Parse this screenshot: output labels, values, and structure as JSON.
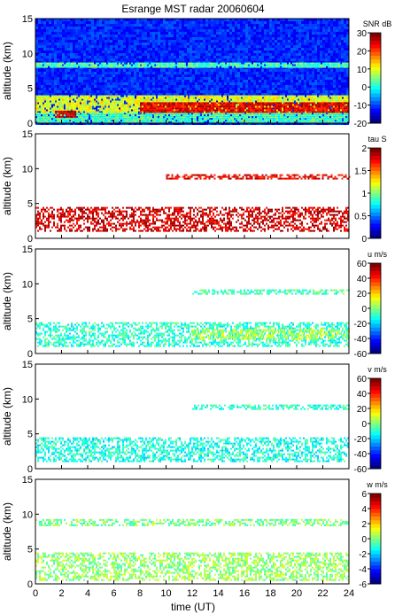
{
  "title": "Esrange MST radar 20060604",
  "chart_data": [
    {
      "type": "heatmap",
      "ylabel": "altitude (km)",
      "xlabel": "",
      "xlim": [
        0,
        24
      ],
      "ylim": [
        0,
        15
      ],
      "x_ticks": [
        "0",
        "2",
        "4",
        "6",
        "8",
        "10",
        "12",
        "14",
        "16",
        "18",
        "20",
        "22",
        "24"
      ],
      "y_ticks": [
        "0",
        "5",
        "10",
        "15"
      ],
      "colorbar": {
        "label": "SNR dB",
        "min": -20,
        "max": 30,
        "ticks": [
          "30",
          "20",
          "10",
          "0",
          "-10",
          "-20"
        ]
      },
      "background": "noise",
      "layers": [
        {
          "x": [
            0,
            24
          ],
          "y": [
            0,
            1.5
          ],
          "level": 0.45
        },
        {
          "x": [
            0,
            24
          ],
          "y": [
            1.5,
            4
          ],
          "level": 0.6
        },
        {
          "x": [
            8,
            24
          ],
          "y": [
            1.5,
            3
          ],
          "level": 0.9
        },
        {
          "x": [
            1.5,
            3
          ],
          "y": [
            0.8,
            1.8
          ],
          "level": 0.95
        },
        {
          "x": [
            0,
            24
          ],
          "y": [
            8,
            8.7
          ],
          "level": 0.45
        }
      ]
    },
    {
      "type": "heatmap",
      "ylabel": "altitude (km)",
      "xlabel": "",
      "xlim": [
        0,
        24
      ],
      "ylim": [
        0,
        15
      ],
      "x_ticks": [
        "0",
        "2",
        "4",
        "6",
        "8",
        "10",
        "12",
        "14",
        "16",
        "18",
        "20",
        "22",
        "24"
      ],
      "y_ticks": [
        "0",
        "5",
        "10",
        "15"
      ],
      "colorbar": {
        "label": "tau S",
        "min": 0,
        "max": 2,
        "ticks": [
          "2",
          "1.5",
          "1",
          "0.5",
          "0"
        ]
      },
      "background": "none",
      "layers": [
        {
          "x": [
            0,
            24
          ],
          "y": [
            1,
            4.5
          ],
          "level": 0.92
        },
        {
          "x": [
            10,
            24
          ],
          "y": [
            8.5,
            9.2
          ],
          "level": 0.9
        }
      ]
    },
    {
      "type": "heatmap",
      "ylabel": "altitude (km)",
      "xlabel": "",
      "xlim": [
        0,
        24
      ],
      "ylim": [
        0,
        15
      ],
      "x_ticks": [
        "0",
        "2",
        "4",
        "6",
        "8",
        "10",
        "12",
        "14",
        "16",
        "18",
        "20",
        "22",
        "24"
      ],
      "y_ticks": [
        "0",
        "5",
        "10",
        "15"
      ],
      "colorbar": {
        "label": "u m/s",
        "min": -60,
        "max": 60,
        "ticks": [
          "60",
          "40",
          "20",
          "0",
          "-20",
          "-40",
          "-60"
        ]
      },
      "background": "none",
      "layers": [
        {
          "x": [
            0,
            24
          ],
          "y": [
            1,
            4.5
          ],
          "level": 0.42
        },
        {
          "x": [
            12,
            24
          ],
          "y": [
            2,
            3.5
          ],
          "level": 0.55
        },
        {
          "x": [
            12,
            24
          ],
          "y": [
            8.5,
            9.2
          ],
          "level": 0.45
        }
      ]
    },
    {
      "type": "heatmap",
      "ylabel": "altitude (km)",
      "xlabel": "",
      "xlim": [
        0,
        24
      ],
      "ylim": [
        0,
        15
      ],
      "x_ticks": [
        "0",
        "2",
        "4",
        "6",
        "8",
        "10",
        "12",
        "14",
        "16",
        "18",
        "20",
        "22",
        "24"
      ],
      "y_ticks": [
        "0",
        "5",
        "10",
        "15"
      ],
      "colorbar": {
        "label": "v m/s",
        "min": -60,
        "max": 60,
        "ticks": [
          "60",
          "40",
          "20",
          "0",
          "-20",
          "-40",
          "-60"
        ]
      },
      "background": "none",
      "layers": [
        {
          "x": [
            0,
            24
          ],
          "y": [
            1,
            4.5
          ],
          "level": 0.4
        },
        {
          "x": [
            12,
            24
          ],
          "y": [
            8.5,
            9.2
          ],
          "level": 0.42
        }
      ]
    },
    {
      "type": "heatmap",
      "ylabel": "altitude (km)",
      "xlabel": "time (UT)",
      "xlim": [
        0,
        24
      ],
      "ylim": [
        0,
        15
      ],
      "x_ticks": [
        "0",
        "2",
        "4",
        "6",
        "8",
        "10",
        "12",
        "14",
        "16",
        "18",
        "20",
        "22",
        "24"
      ],
      "y_ticks": [
        "0",
        "5",
        "10",
        "15"
      ],
      "colorbar": {
        "label": "w m/s",
        "min": -6,
        "max": 6,
        "ticks": [
          "6",
          "4",
          "2",
          "0",
          "-2",
          "-4",
          "-6"
        ]
      },
      "background": "none",
      "layers": [
        {
          "x": [
            0,
            24
          ],
          "y": [
            0.5,
            4.5
          ],
          "level": 0.52
        },
        {
          "x": [
            0,
            24
          ],
          "y": [
            8.3,
            9.3
          ],
          "level": 0.5
        }
      ]
    }
  ]
}
